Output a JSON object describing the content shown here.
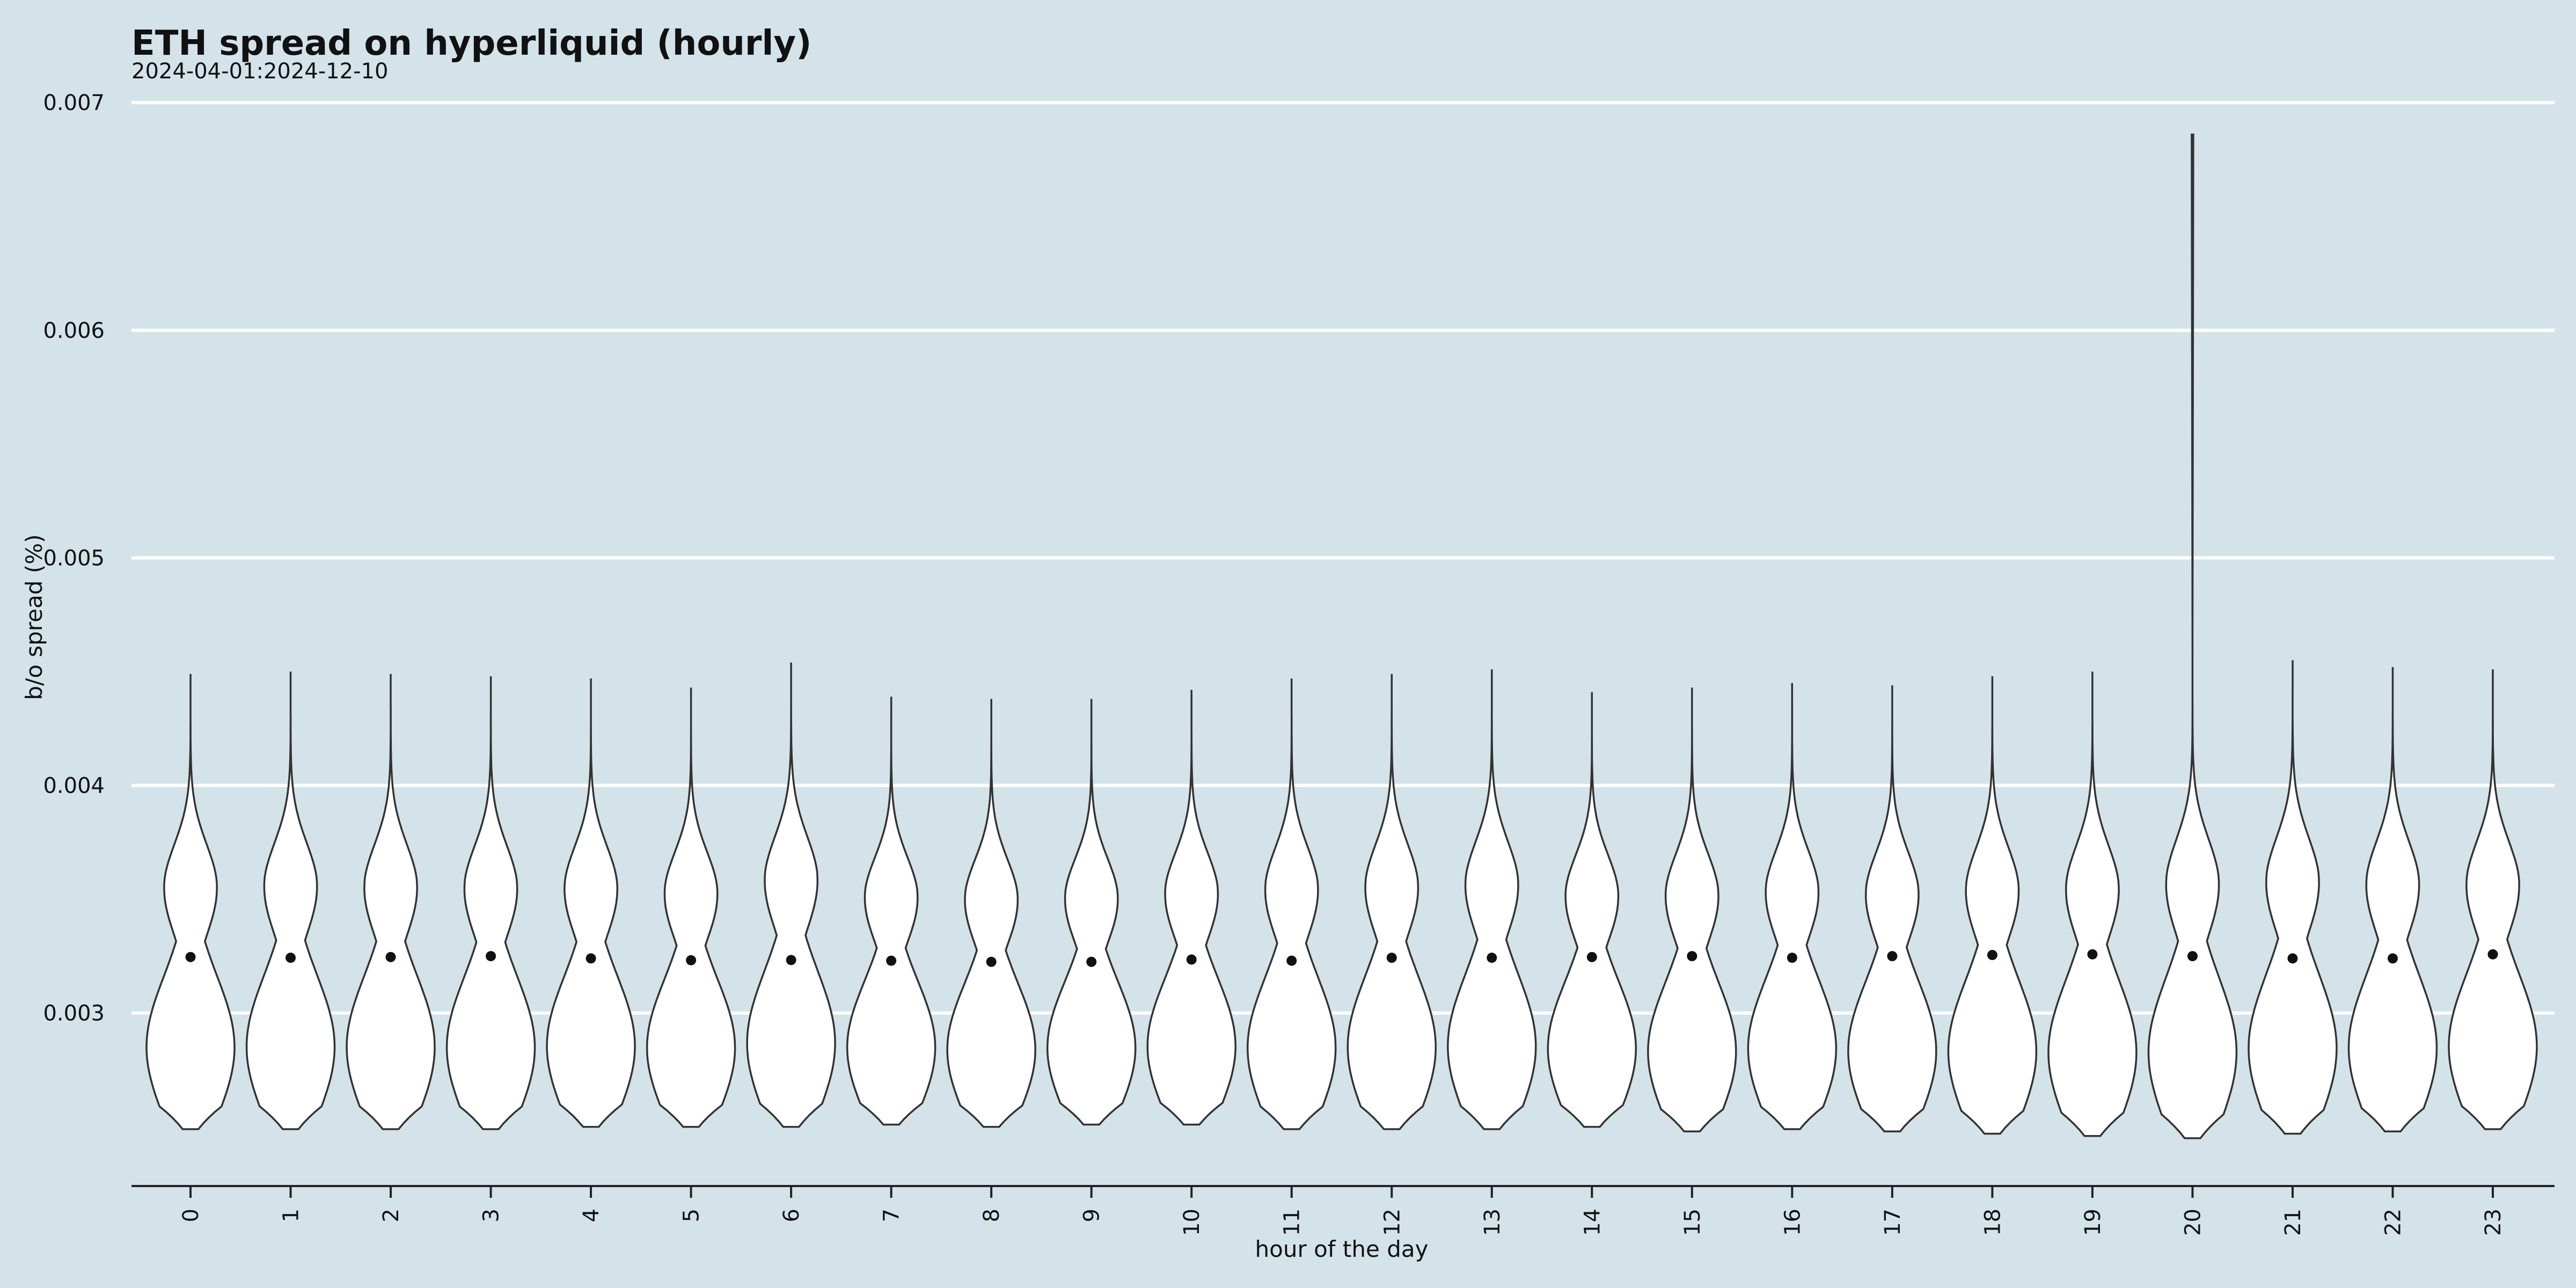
{
  "chart_data": {
    "type": "violin",
    "title": "ETH spread on hyperliquid (hourly)",
    "subtitle": "2024-04-01:2024-12-10",
    "xlabel": "hour of the day",
    "ylabel": "b/o spread (%)",
    "ylim": [
      0.00224,
      0.00705
    ],
    "yticks": [
      0.003,
      0.004,
      0.005,
      0.006,
      0.007
    ],
    "categories": [
      "0",
      "1",
      "2",
      "3",
      "4",
      "5",
      "6",
      "7",
      "8",
      "9",
      "10",
      "11",
      "12",
      "13",
      "14",
      "15",
      "16",
      "17",
      "18",
      "19",
      "20",
      "21",
      "22",
      "23"
    ],
    "background": "#d4e3ea",
    "grid": true,
    "series": [
      {
        "max": 0.00449,
        "min": 0.00249,
        "mean": 0.003246
      },
      {
        "max": 0.0045,
        "min": 0.00249,
        "mean": 0.003243
      },
      {
        "max": 0.00449,
        "min": 0.00249,
        "mean": 0.003246
      },
      {
        "max": 0.00448,
        "min": 0.00249,
        "mean": 0.00325
      },
      {
        "max": 0.00447,
        "min": 0.0025,
        "mean": 0.00324
      },
      {
        "max": 0.00443,
        "min": 0.0025,
        "mean": 0.003232
      },
      {
        "max": 0.00454,
        "min": 0.0025,
        "mean": 0.003233
      },
      {
        "max": 0.00439,
        "min": 0.00251,
        "mean": 0.00323
      },
      {
        "max": 0.00438,
        "min": 0.0025,
        "mean": 0.003225
      },
      {
        "max": 0.00438,
        "min": 0.00251,
        "mean": 0.003225
      },
      {
        "max": 0.00442,
        "min": 0.00251,
        "mean": 0.003235
      },
      {
        "max": 0.00447,
        "min": 0.00249,
        "mean": 0.00323
      },
      {
        "max": 0.00449,
        "min": 0.00249,
        "mean": 0.003243
      },
      {
        "max": 0.00451,
        "min": 0.00249,
        "mean": 0.003243
      },
      {
        "max": 0.00441,
        "min": 0.0025,
        "mean": 0.003246
      },
      {
        "max": 0.00443,
        "min": 0.00248,
        "mean": 0.00325
      },
      {
        "max": 0.00445,
        "min": 0.00249,
        "mean": 0.003243
      },
      {
        "max": 0.00444,
        "min": 0.00248,
        "mean": 0.00325
      },
      {
        "max": 0.00448,
        "min": 0.00247,
        "mean": 0.003255
      },
      {
        "max": 0.0045,
        "min": 0.00246,
        "mean": 0.003258
      },
      {
        "max": 0.00686,
        "min": 0.00245,
        "mean": 0.00325
      },
      {
        "max": 0.00456,
        "min": 0.00247,
        "mean": 0.00324
      },
      {
        "max": 0.00452,
        "min": 0.00248,
        "mean": 0.00324
      },
      {
        "max": 0.00451,
        "min": 0.00249,
        "mean": 0.003258
      }
    ]
  }
}
